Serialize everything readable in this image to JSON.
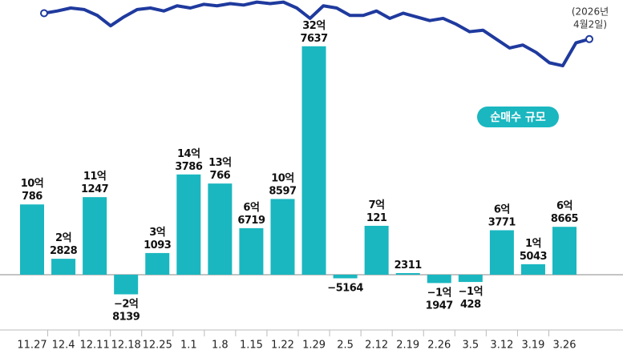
{
  "chart_data": {
    "type": "bar",
    "categories": [
      "11.27",
      "12.4",
      "12.11",
      "12.18",
      "12.25",
      "1.1",
      "1.8",
      "1.15",
      "1.22",
      "1.29",
      "2.5",
      "2.12",
      "2.19",
      "2.26",
      "3.5",
      "3.12",
      "3.19",
      "3.26"
    ],
    "values": [
      100786,
      22828,
      111247,
      -28139,
      31093,
      143786,
      130766,
      66719,
      108597,
      327637,
      -5164,
      70121,
      2311,
      -11947,
      -10428,
      63771,
      15043,
      68665
    ],
    "value_labels": [
      "10억 786",
      "2억 2828",
      "11억 1247",
      "−2억 8139",
      "3억 1093",
      "14억 3786",
      "13억 766",
      "6억 6719",
      "10억 8597",
      "32억 7637",
      "−5164",
      "7억 121",
      "2311",
      "−1억 1947",
      "−1억 428",
      "6억 3771",
      "1억 5043",
      "6억 8665"
    ],
    "color": "#1ab7c0",
    "ylim": [
      -108000,
      394000
    ],
    "legend_label": "순매수 규모",
    "line": {
      "color": "#1f3a9e",
      "values": [
        85,
        88,
        92,
        90,
        82,
        68,
        80,
        90,
        92,
        88,
        95,
        92,
        97,
        95,
        98,
        96,
        100,
        98,
        100,
        92,
        78,
        95,
        92,
        82,
        82,
        88,
        78,
        85,
        80,
        75,
        78,
        70,
        60,
        62,
        50,
        38,
        42,
        32,
        18,
        14,
        45,
        50
      ],
      "ylim": [
        0,
        105
      ],
      "end_note": [
        "(2026년",
        "4월2일)"
      ]
    }
  }
}
